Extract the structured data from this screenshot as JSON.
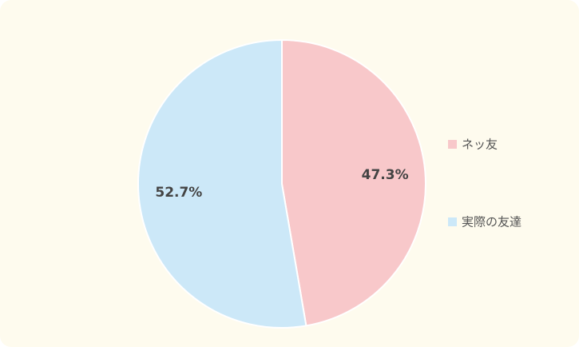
{
  "chart_data": {
    "type": "pie",
    "categories": [
      "ネッ友",
      "実際の友達"
    ],
    "values": [
      47.3,
      52.7
    ],
    "value_labels": [
      "47.3%",
      "52.7%"
    ],
    "colors": [
      "#f8c8ca",
      "#cce8f8"
    ],
    "legend": "right"
  }
}
